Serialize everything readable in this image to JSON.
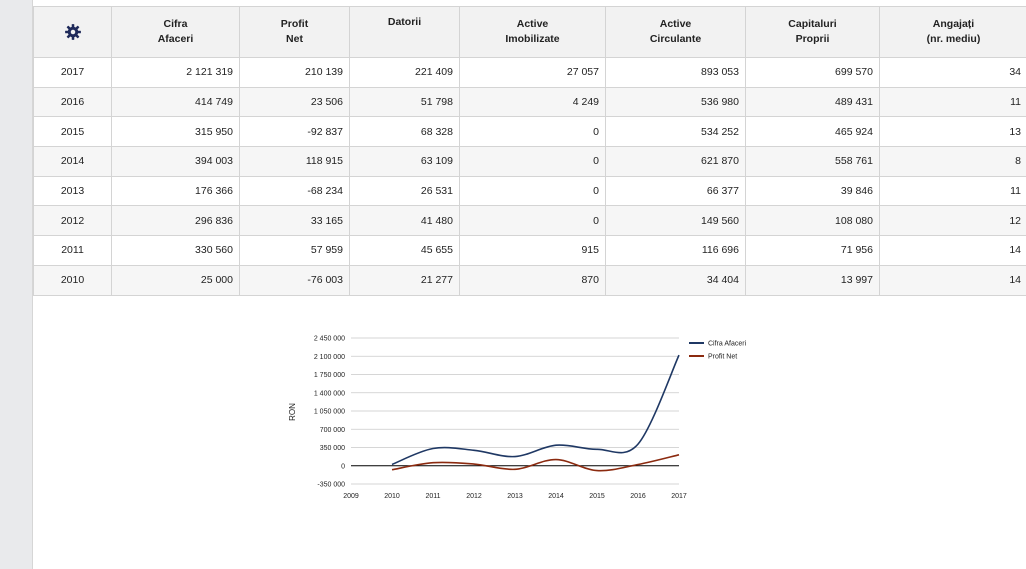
{
  "table": {
    "headers": [
      {
        "line1": "",
        "line2": "",
        "icon": "gear-icon"
      },
      {
        "line1": "Cifra",
        "line2": "Afaceri"
      },
      {
        "line1": "Profit",
        "line2": "Net"
      },
      {
        "line1": "Datorii",
        "line2": ""
      },
      {
        "line1": "Active",
        "line2": "Imobilizate"
      },
      {
        "line1": "Active",
        "line2": "Circulante"
      },
      {
        "line1": "Capitaluri",
        "line2": "Proprii"
      },
      {
        "line1": "Angajați",
        "line2": "(nr. mediu)"
      }
    ],
    "rows": [
      [
        "2017",
        "2 121 319",
        "210 139",
        "221 409",
        "27 057",
        "893 053",
        "699 570",
        "34"
      ],
      [
        "2016",
        "414 749",
        "23 506",
        "51 798",
        "4 249",
        "536 980",
        "489 431",
        "11"
      ],
      [
        "2015",
        "315 950",
        "-92 837",
        "68 328",
        "0",
        "534 252",
        "465 924",
        "13"
      ],
      [
        "2014",
        "394 003",
        "118 915",
        "63 109",
        "0",
        "621 870",
        "558 761",
        "8"
      ],
      [
        "2013",
        "176 366",
        "-68 234",
        "26 531",
        "0",
        "66 377",
        "39 846",
        "11"
      ],
      [
        "2012",
        "296 836",
        "33 165",
        "41 480",
        "0",
        "149 560",
        "108 080",
        "12"
      ],
      [
        "2011",
        "330 560",
        "57 959",
        "45 655",
        "915",
        "116 696",
        "71 956",
        "14"
      ],
      [
        "2010",
        "25 000",
        "-76 003",
        "21 277",
        "870",
        "34 404",
        "13 997",
        "14"
      ]
    ]
  },
  "chart_data": {
    "type": "line",
    "title": "",
    "xlabel": "",
    "ylabel": "RON",
    "x": [
      2009,
      2010,
      2011,
      2012,
      2013,
      2014,
      2015,
      2016,
      2017
    ],
    "x_tick_labels": [
      "2009",
      "2010",
      "2011",
      "2012",
      "2013",
      "2014",
      "2015",
      "2016",
      "2017"
    ],
    "y_ticks": [
      2450000,
      2100000,
      1750000,
      1400000,
      1050000,
      700000,
      350000,
      0,
      -350000
    ],
    "y_tick_labels": [
      "2 450 000",
      "2 100 000",
      "1 750 000",
      "1 400 000",
      "1 050 000",
      "700 000",
      "350 000",
      "0",
      "-350 000"
    ],
    "ylim": [
      -350000,
      2450000
    ],
    "grid": true,
    "legend_position": "right",
    "series": [
      {
        "name": "Cifra Afaceri",
        "color": "#1f3864",
        "x": [
          2010,
          2011,
          2012,
          2013,
          2014,
          2015,
          2016,
          2017
        ],
        "values": [
          25000,
          330560,
          296836,
          176366,
          394003,
          315950,
          414749,
          2121319
        ]
      },
      {
        "name": "Profit Net",
        "color": "#8b2a0f",
        "x": [
          2010,
          2011,
          2012,
          2013,
          2014,
          2015,
          2016,
          2017
        ],
        "values": [
          -76003,
          57959,
          33165,
          -68234,
          118915,
          -92837,
          23506,
          210139
        ]
      }
    ]
  },
  "colors": {
    "page_bg": "#e9eaec",
    "header_bg": "#f2f2f2",
    "gear": "#1f2a5a"
  }
}
